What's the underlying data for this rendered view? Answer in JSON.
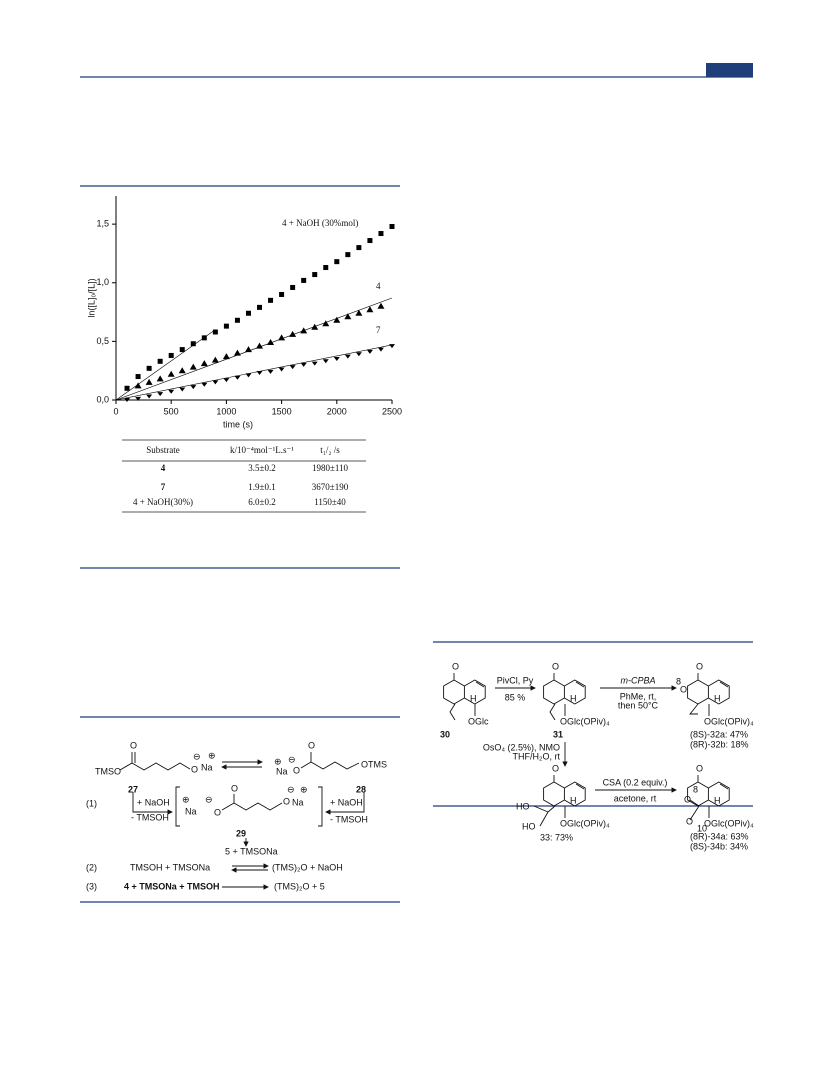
{
  "chart_data": {
    "type": "scatter",
    "xlabel": "time (s)",
    "ylabel": "ln([L]₀/[L])",
    "xlim": [
      0,
      2500
    ],
    "ylim": [
      0,
      1.74
    ],
    "xticks": [
      0,
      500,
      1000,
      1500,
      2000,
      2500
    ],
    "yticks": [
      {
        "value": 0,
        "label": "0,0"
      },
      {
        "value": 0.5,
        "label": "0,5"
      },
      {
        "value": 1,
        "label": "1,0"
      },
      {
        "value": 1.5,
        "label": "1,5"
      }
    ],
    "series": [
      {
        "name": "4 + NaOH (30%mol)",
        "marker": "square",
        "color": "#000000",
        "x": [
          100,
          200,
          300,
          400,
          500,
          600,
          700,
          800,
          900,
          1000,
          1100,
          1200,
          1300,
          1400,
          1500,
          1600,
          1700,
          1800,
          1900,
          2000,
          2100,
          2200,
          2300,
          2400,
          2500
        ],
        "values": [
          0.1,
          0.2,
          0.27,
          0.33,
          0.38,
          0.43,
          0.48,
          0.53,
          0.58,
          0.63,
          0.68,
          0.74,
          0.79,
          0.85,
          0.9,
          0.96,
          1.02,
          1.07,
          1.13,
          1.18,
          1.24,
          1.3,
          1.36,
          1.42,
          1.48
        ],
        "fit": {
          "x": [
            0,
            900
          ],
          "values": [
            0,
            0.6
          ]
        }
      },
      {
        "name": "4",
        "marker": "triangle",
        "color": "#000000",
        "x": [
          200,
          300,
          400,
          500,
          600,
          700,
          800,
          900,
          1000,
          1100,
          1200,
          1300,
          1400,
          1500,
          1600,
          1700,
          1800,
          1900,
          2000,
          2100,
          2200,
          2300,
          2400
        ],
        "values": [
          0.12,
          0.15,
          0.18,
          0.22,
          0.25,
          0.28,
          0.31,
          0.34,
          0.37,
          0.4,
          0.43,
          0.46,
          0.49,
          0.53,
          0.56,
          0.59,
          0.62,
          0.65,
          0.68,
          0.71,
          0.74,
          0.77,
          0.8
        ],
        "fit": {
          "x": [
            0,
            2500
          ],
          "values": [
            0,
            0.87
          ]
        }
      },
      {
        "name": "7",
        "marker": "down",
        "color": "#000000",
        "x": [
          100,
          200,
          300,
          400,
          500,
          600,
          700,
          800,
          900,
          1000,
          1100,
          1200,
          1300,
          1400,
          1500,
          1600,
          1700,
          1800,
          1900,
          2000,
          2100,
          2200,
          2300,
          2400,
          2500
        ],
        "values": [
          0,
          0.01,
          0.03,
          0.05,
          0.07,
          0.09,
          0.11,
          0.13,
          0.15,
          0.17,
          0.19,
          0.21,
          0.23,
          0.24,
          0.26,
          0.28,
          0.3,
          0.31,
          0.33,
          0.35,
          0.37,
          0.39,
          0.41,
          0.43,
          0.46
        ],
        "fit": {
          "x": [
            0,
            2500
          ],
          "values": [
            0,
            0.47
          ]
        }
      }
    ]
  },
  "table": {
    "columns": [
      "Substrate",
      "k/10⁻⁴mol⁻¹L.s⁻¹",
      "t₁/₂ /s"
    ],
    "rows": [
      [
        "4",
        "3.5±0.2",
        "1980±110"
      ],
      [
        "7",
        "1.9±0.1",
        "3670±190"
      ],
      [
        "4 + NaOH(30%)",
        "6.0±0.2",
        "1150±40"
      ]
    ]
  },
  "scheme_left": {
    "atoms": {
      "O": "O",
      "Na": "Na",
      "minus": "⊖",
      "plus": "⊕"
    },
    "tmso": "TMSO",
    "otms": "OTMS",
    "c27": "27",
    "c28": "28",
    "c29": "29",
    "eq1": "(1)",
    "eq2": "(2)",
    "eq3": "(3)",
    "add_naoh": "+ NaOH",
    "minus_tmsoh": "- TMSOH",
    "product1": "5 + TMSONa",
    "eq2_left": "TMSOH +  TMSONa",
    "eq2_right": "(TMS)₂O + NaOH",
    "eq3_left": "4 + TMSONa +  TMSOH",
    "eq3_right": "(TMS)₂O + 5"
  },
  "scheme_right": {
    "atoms": {
      "O": "O",
      "H": "H",
      "HO": "HO"
    },
    "c30": "30",
    "c31": "31",
    "c33": "33: 73%",
    "oglc": "OGlc",
    "oglc_piv": "OGlc(OPiv)₄",
    "step1": [
      "PivCl, Py",
      "85 %"
    ],
    "step2": [
      "m-CPBA",
      "PhMe, rt,",
      "then 50°C"
    ],
    "step3": [
      "OsO₄ (2.5%), NMO",
      "THF/H₂O, rt"
    ],
    "step4": [
      "CSA (0.2 equiv.)",
      "acetone, rt"
    ],
    "p32": [
      "(8S)-32a: 47%",
      "(8R)-32b: 18%"
    ],
    "p34": [
      "(8R)-34a: 63%",
      "(8S)-34b: 34%"
    ],
    "n8": "8",
    "n10": "10"
  }
}
